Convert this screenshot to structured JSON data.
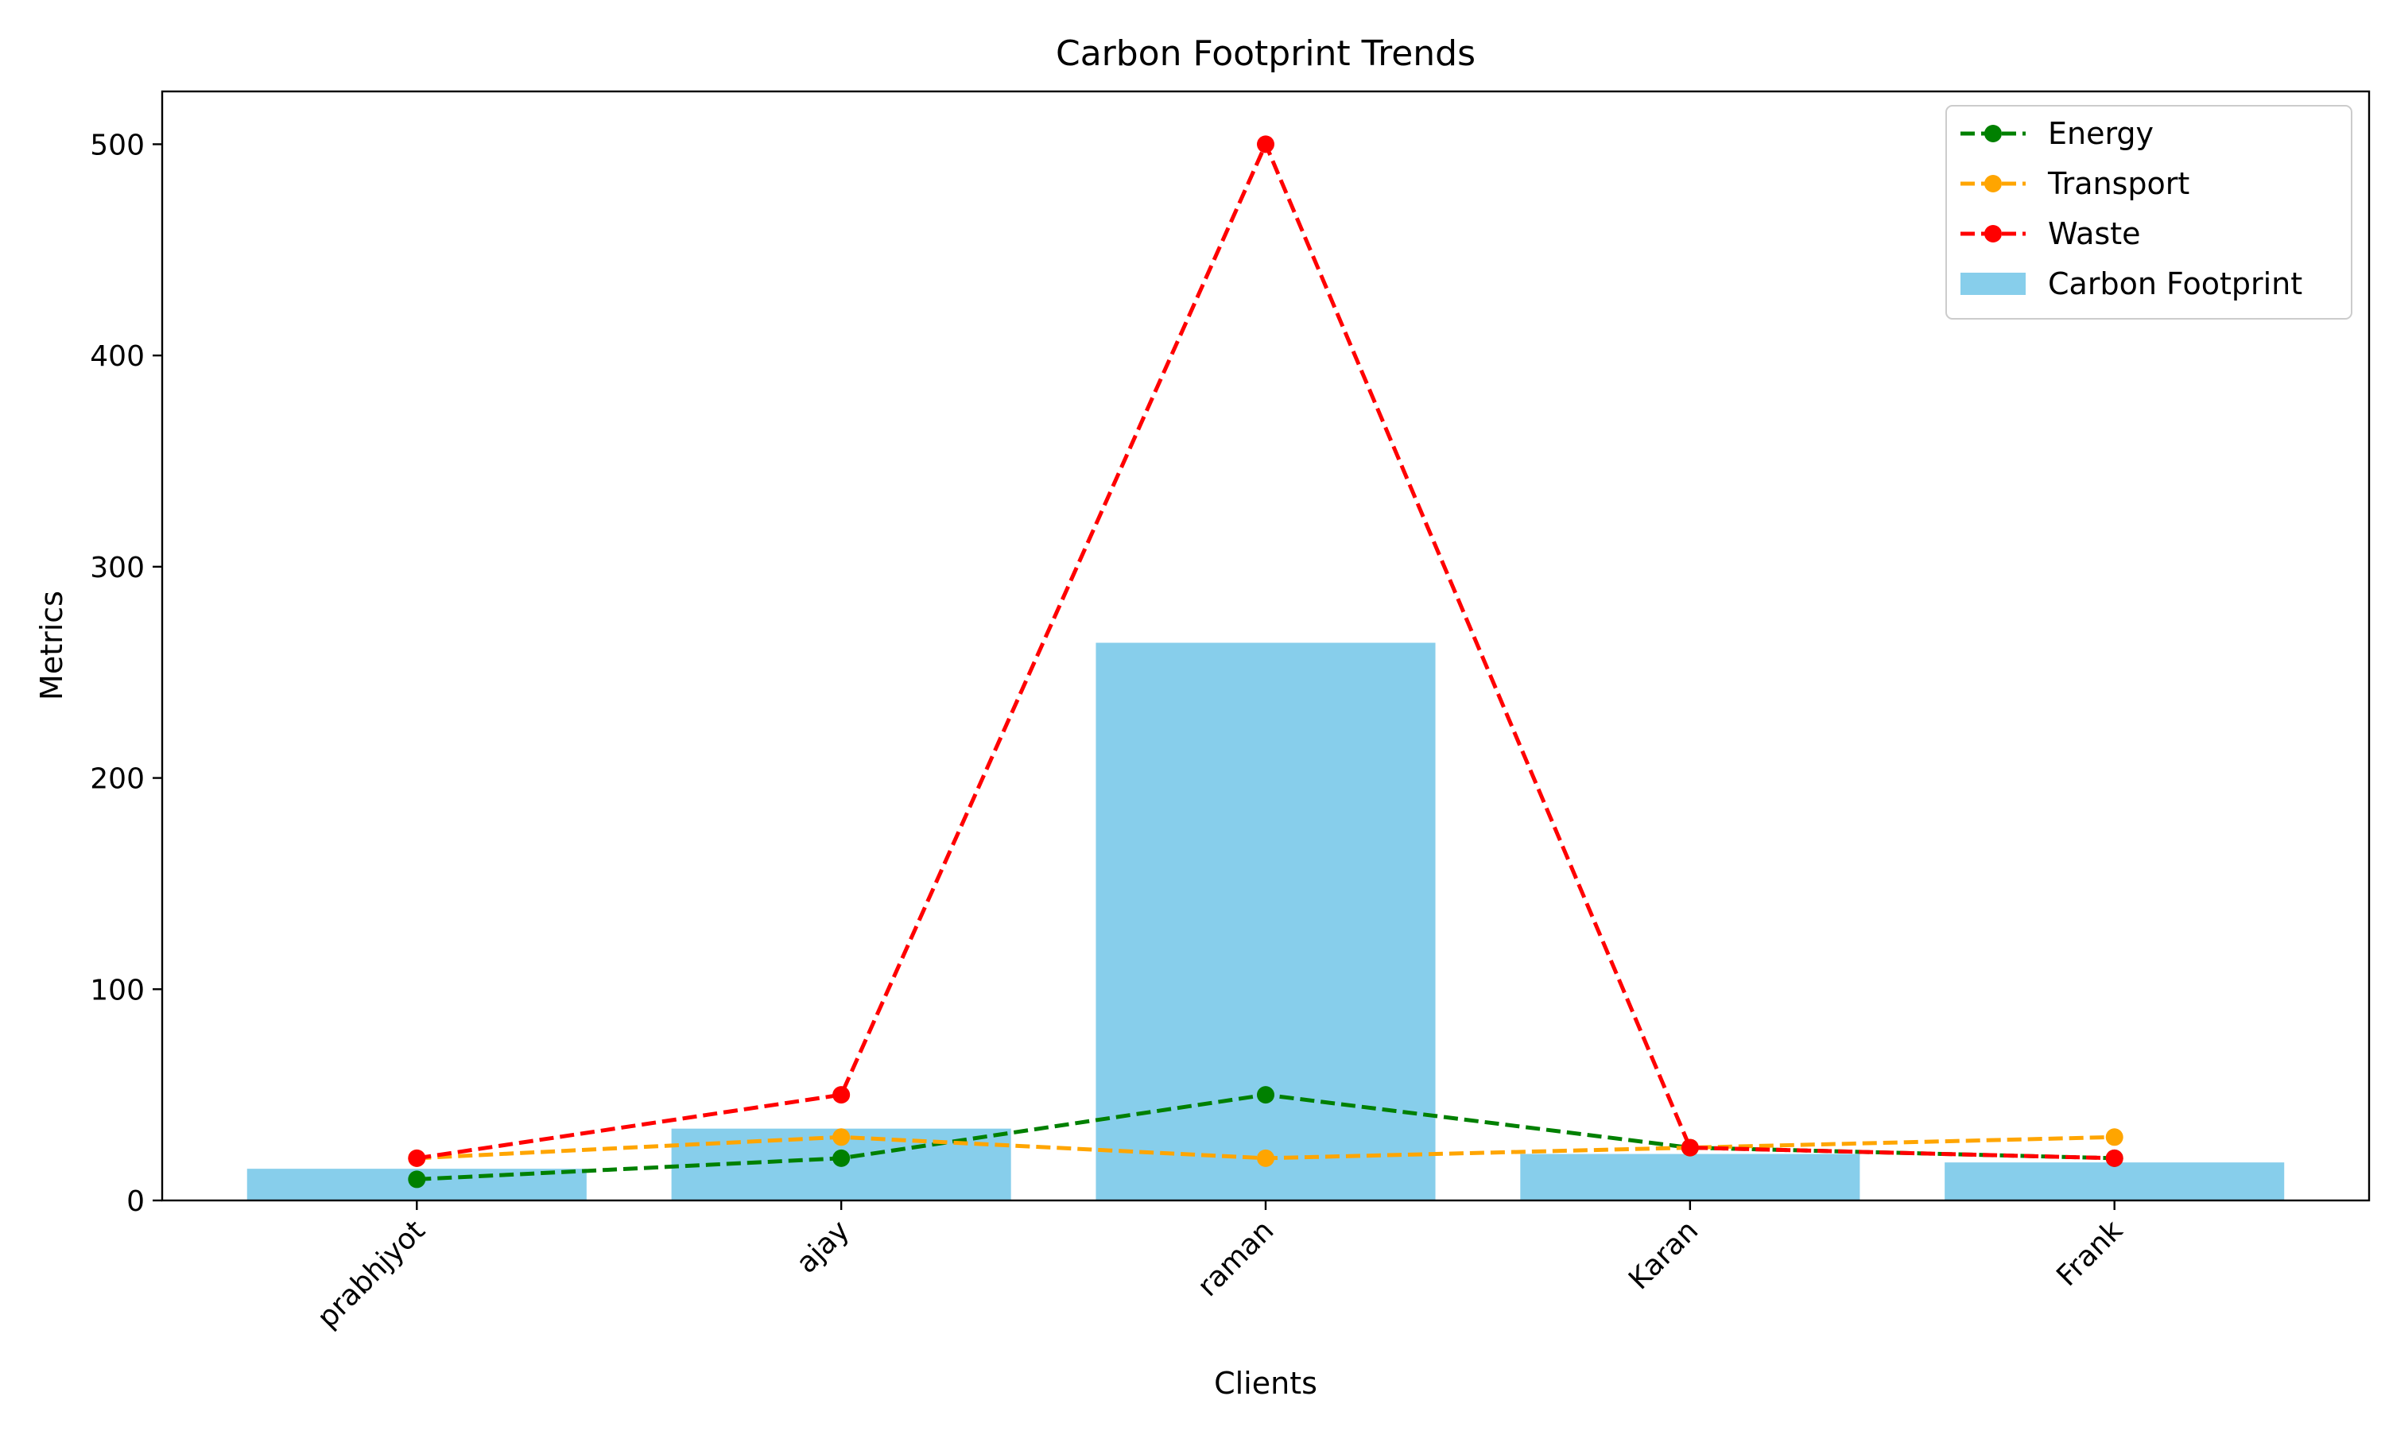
{
  "chart_data": {
    "type": "bar",
    "title": "Carbon Footprint Trends",
    "xlabel": "Clients",
    "ylabel": "Metrics",
    "categories": [
      "prabhjyot",
      "ajay",
      "raman",
      "Karan",
      "Frank"
    ],
    "ylim": [
      0,
      525
    ],
    "yticks": [
      0,
      100,
      200,
      300,
      400,
      500
    ],
    "grid": false,
    "legend_position": "top-right",
    "bars": {
      "name": "Carbon Footprint",
      "color": "#87ceeb",
      "values": [
        15,
        34,
        264,
        22,
        18
      ]
    },
    "series": [
      {
        "name": "Energy",
        "color": "#008000",
        "style": "dashed",
        "marker": "circle",
        "values": [
          10,
          20,
          50,
          25,
          20
        ]
      },
      {
        "name": "Transport",
        "color": "#ffa500",
        "style": "dashed",
        "marker": "circle",
        "values": [
          20,
          30,
          20,
          25,
          30
        ]
      },
      {
        "name": "Waste",
        "color": "#ff0000",
        "style": "dashed",
        "marker": "circle",
        "values": [
          20,
          50,
          500,
          25,
          20
        ]
      }
    ]
  }
}
